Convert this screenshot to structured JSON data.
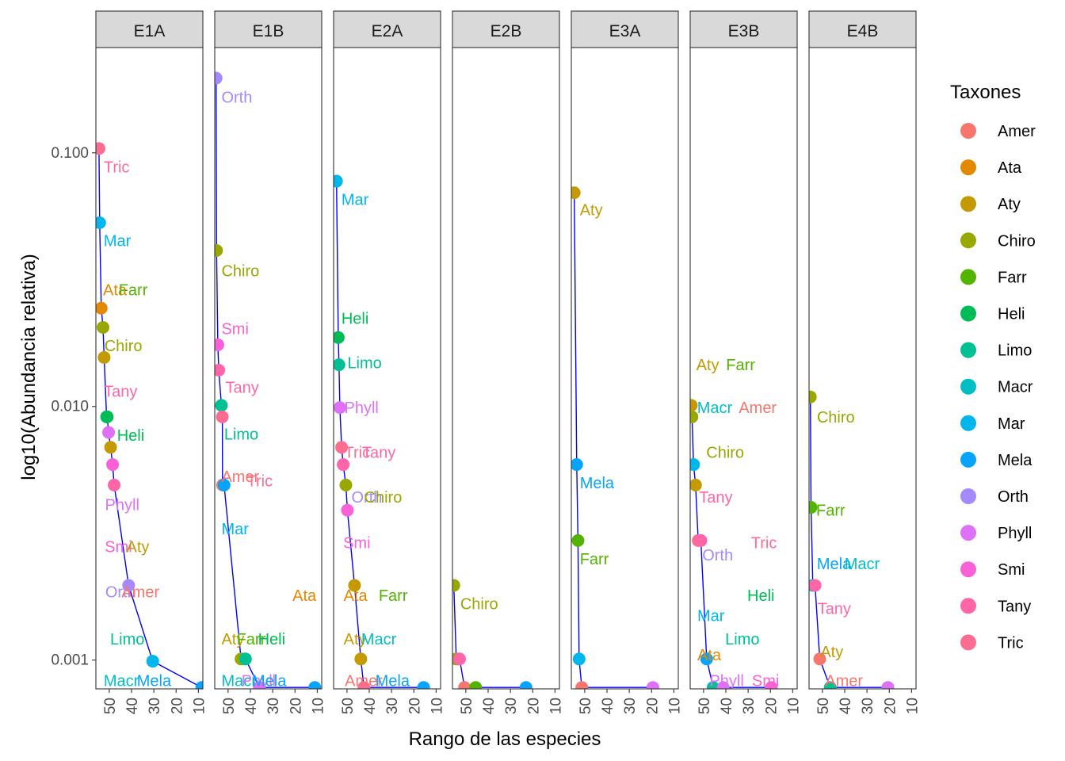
{
  "chart_data": {
    "type": "scatter",
    "xlabel": "Rango de las especies",
    "ylabel": "log10(Abundancia relativa)",
    "y_scale": "log10",
    "ylim": [
      0.00077,
      0.26
    ],
    "y_ticks": [
      0.001,
      0.01,
      0.1
    ],
    "y_tick_labels": [
      "0.001",
      "0.010",
      "0.100"
    ],
    "x_reversed": true,
    "xlim": [
      56,
      8
    ],
    "x_ticks": [
      50,
      40,
      30,
      20,
      10
    ],
    "x_tick_labels": [
      "50",
      "40",
      "30",
      "20",
      "10"
    ],
    "grid": false,
    "legend_position": "right",
    "legend": {
      "title": "Taxones",
      "entries": [
        {
          "name": "Amer",
          "color": "#F8766D"
        },
        {
          "name": "Ata",
          "color": "#E38900"
        },
        {
          "name": "Aty",
          "color": "#C49A00"
        },
        {
          "name": "Chiro",
          "color": "#99A800"
        },
        {
          "name": "Farr",
          "color": "#53B400"
        },
        {
          "name": "Heli",
          "color": "#00BC56"
        },
        {
          "name": "Limo",
          "color": "#00C094"
        },
        {
          "name": "Macr",
          "color": "#00BFC4"
        },
        {
          "name": "Mar",
          "color": "#00B6EB"
        },
        {
          "name": "Mela",
          "color": "#06A4FF"
        },
        {
          "name": "Orth",
          "color": "#A58AFF"
        },
        {
          "name": "Phyll",
          "color": "#DF70F8"
        },
        {
          "name": "Smi",
          "color": "#FB61D7"
        },
        {
          "name": "Tany",
          "color": "#FF66A8"
        },
        {
          "name": "Tric",
          "color": "#FF6C91"
        }
      ]
    },
    "facets": [
      {
        "name": "E1A",
        "points": [
          {
            "taxon": "Tric",
            "x": 54.6,
            "y": 0.104
          },
          {
            "taxon": "Mar",
            "x": 54.3,
            "y": 0.053
          },
          {
            "taxon": "Ata",
            "x": 53.6,
            "y": 0.0244
          },
          {
            "taxon": "Chiro",
            "x": 52.8,
            "y": 0.0205
          },
          {
            "taxon": "Aty",
            "x": 52.3,
            "y": 0.0156
          },
          {
            "taxon": "Limo",
            "x": 51.2,
            "y": 0.0091
          },
          {
            "taxon": "Heli",
            "x": 50.9,
            "y": 0.0091
          },
          {
            "taxon": "Phyll",
            "x": 50.3,
            "y": 0.0079
          },
          {
            "taxon": "Aty",
            "x": 49.4,
            "y": 0.0069
          },
          {
            "taxon": "Smi",
            "x": 48.5,
            "y": 0.0059
          },
          {
            "taxon": "Tany",
            "x": 47.8,
            "y": 0.0049
          },
          {
            "taxon": "Orth",
            "x": 41.3,
            "y": 0.00197
          },
          {
            "taxon": "Mar",
            "x": 30.5,
            "y": 0.00099
          },
          {
            "taxon": "Mela",
            "x": 8.5,
            "y": 0.00078
          }
        ],
        "labels": [
          {
            "text": "Tric",
            "taxon": "Tric",
            "x": 52.5,
            "y": 0.088
          },
          {
            "text": "Mar",
            "taxon": "Mar",
            "x": 52.5,
            "y": 0.045
          },
          {
            "text": "Ata",
            "taxon": "Ata",
            "x": 52.8,
            "y": 0.0289
          },
          {
            "text": "Farr",
            "taxon": "Farr",
            "x": 45.8,
            "y": 0.0289
          },
          {
            "text": "Chiro",
            "taxon": "Chiro",
            "x": 52.2,
            "y": 0.0174
          },
          {
            "text": "Tany",
            "taxon": "Tany",
            "x": 52.4,
            "y": 0.0115
          },
          {
            "text": "Heli",
            "taxon": "Heli",
            "x": 46.5,
            "y": 0.0077
          },
          {
            "text": "Phyll",
            "taxon": "Phyll",
            "x": 51.9,
            "y": 0.0041
          },
          {
            "text": "Smi",
            "taxon": "Smi",
            "x": 52.0,
            "y": 0.0028
          },
          {
            "text": "Aty",
            "taxon": "Aty",
            "x": 42.3,
            "y": 0.0028
          },
          {
            "text": "Orth",
            "taxon": "Orth",
            "x": 51.8,
            "y": 0.00186
          },
          {
            "text": "Amer",
            "taxon": "Amer",
            "x": 44.5,
            "y": 0.00186
          },
          {
            "text": "Limo",
            "taxon": "Limo",
            "x": 49.6,
            "y": 0.00121
          },
          {
            "text": "Macr",
            "taxon": "Macr",
            "x": 52.5,
            "y": 0.00083
          },
          {
            "text": "Mela",
            "taxon": "Mela",
            "x": 37.6,
            "y": 0.00083
          }
        ]
      },
      {
        "name": "E1B",
        "points": [
          {
            "taxon": "Orth",
            "x": 55.4,
            "y": 0.197
          },
          {
            "taxon": "Chiro",
            "x": 55.2,
            "y": 0.0412
          },
          {
            "taxon": "Smi",
            "x": 54.6,
            "y": 0.0175
          },
          {
            "taxon": "Tany",
            "x": 54.2,
            "y": 0.0139
          },
          {
            "taxon": "Limo",
            "x": 53.0,
            "y": 0.0101
          },
          {
            "taxon": "Tric",
            "x": 52.6,
            "y": 0.0091
          },
          {
            "taxon": "Amer",
            "x": 52.5,
            "y": 0.0049
          },
          {
            "taxon": "Mela",
            "x": 51.8,
            "y": 0.0049
          },
          {
            "taxon": "Chiro",
            "x": 44.2,
            "y": 0.00101
          },
          {
            "taxon": "Limo",
            "x": 42.2,
            "y": 0.00101
          },
          {
            "taxon": "Phyll",
            "x": 36.0,
            "y": 0.00078
          },
          {
            "taxon": "Mela",
            "x": 11.1,
            "y": 0.00078
          }
        ],
        "labels": [
          {
            "text": "Orth",
            "taxon": "Orth",
            "x": 53.0,
            "y": 0.166
          },
          {
            "text": "Chiro",
            "taxon": "Chiro",
            "x": 53.0,
            "y": 0.0343
          },
          {
            "text": "Smi",
            "taxon": "Smi",
            "x": 53.0,
            "y": 0.0203
          },
          {
            "text": "Tany",
            "taxon": "Tany",
            "x": 51.2,
            "y": 0.0119
          },
          {
            "text": "Limo",
            "taxon": "Limo",
            "x": 51.8,
            "y": 0.0078
          },
          {
            "text": "Amer",
            "taxon": "Amer",
            "x": 53.0,
            "y": 0.0053
          },
          {
            "text": "Tric",
            "taxon": "Tric",
            "x": 41.6,
            "y": 0.0051
          },
          {
            "text": "Mar",
            "taxon": "Mar",
            "x": 53.0,
            "y": 0.0033
          },
          {
            "text": "Ata",
            "taxon": "Ata",
            "x": 21.1,
            "y": 0.0018
          },
          {
            "text": "Aty",
            "taxon": "Aty",
            "x": 53.0,
            "y": 0.00121
          },
          {
            "text": "Farr",
            "taxon": "Farr",
            "x": 46.2,
            "y": 0.00121
          },
          {
            "text": "Heli",
            "taxon": "Heli",
            "x": 36.6,
            "y": 0.00121
          },
          {
            "text": "Macr",
            "taxon": "Macr",
            "x": 53.0,
            "y": 0.00083
          },
          {
            "text": "Phyll",
            "taxon": "Phyll",
            "x": 44.0,
            "y": 0.00083
          },
          {
            "text": "Mela",
            "taxon": "Mela",
            "x": 39.3,
            "y": 0.00083
          }
        ]
      },
      {
        "name": "E2A",
        "points": [
          {
            "taxon": "Mar",
            "x": 54.7,
            "y": 0.0773
          },
          {
            "taxon": "Heli",
            "x": 53.9,
            "y": 0.0187
          },
          {
            "taxon": "Limo",
            "x": 53.6,
            "y": 0.0146
          },
          {
            "taxon": "Phyll",
            "x": 53.2,
            "y": 0.0099
          },
          {
            "taxon": "Tric",
            "x": 52.4,
            "y": 0.0069
          },
          {
            "taxon": "Tany",
            "x": 51.7,
            "y": 0.0059
          },
          {
            "taxon": "Chiro",
            "x": 50.5,
            "y": 0.0049
          },
          {
            "taxon": "Smi",
            "x": 49.8,
            "y": 0.0039
          },
          {
            "taxon": "Aty",
            "x": 46.6,
            "y": 0.00197
          },
          {
            "taxon": "Aty",
            "x": 43.8,
            "y": 0.00101
          },
          {
            "taxon": "Tric",
            "x": 42.4,
            "y": 0.00078
          },
          {
            "taxon": "Mela",
            "x": 15.6,
            "y": 0.00078
          }
        ],
        "labels": [
          {
            "text": "Mar",
            "taxon": "Mar",
            "x": 52.5,
            "y": 0.0655
          },
          {
            "text": "Heli",
            "taxon": "Heli",
            "x": 52.5,
            "y": 0.0223
          },
          {
            "text": "Limo",
            "taxon": "Limo",
            "x": 49.8,
            "y": 0.0149
          },
          {
            "text": "Phyll",
            "taxon": "Phyll",
            "x": 51.2,
            "y": 0.0099
          },
          {
            "text": "Tric",
            "taxon": "Tric",
            "x": 51.2,
            "y": 0.0066
          },
          {
            "text": "Tany",
            "taxon": "Tany",
            "x": 43.2,
            "y": 0.0066
          },
          {
            "text": "Orth",
            "taxon": "Orth",
            "x": 48.0,
            "y": 0.0044
          },
          {
            "text": "Chiro",
            "taxon": "Chiro",
            "x": 42.3,
            "y": 0.0044
          },
          {
            "text": "Smi",
            "taxon": "Smi",
            "x": 51.7,
            "y": 0.0029
          },
          {
            "text": "Ata",
            "taxon": "Ata",
            "x": 51.5,
            "y": 0.0018
          },
          {
            "text": "Farr",
            "taxon": "Farr",
            "x": 35.8,
            "y": 0.0018
          },
          {
            "text": "Aty",
            "taxon": "Aty",
            "x": 51.5,
            "y": 0.00121
          },
          {
            "text": "Macr",
            "taxon": "Macr",
            "x": 43.6,
            "y": 0.00121
          },
          {
            "text": "Amer",
            "taxon": "Amer",
            "x": 51.0,
            "y": 0.00083
          },
          {
            "text": "Mela",
            "taxon": "Mela",
            "x": 37.3,
            "y": 0.00083
          }
        ]
      },
      {
        "name": "E2B",
        "points": [
          {
            "taxon": "Chiro",
            "x": 55.4,
            "y": 0.00197
          },
          {
            "taxon": "Chiro",
            "x": 54.3,
            "y": 0.00101
          },
          {
            "taxon": "Tany",
            "x": 52.8,
            "y": 0.00101
          },
          {
            "taxon": "Amer",
            "x": 50.6,
            "y": 0.00078
          },
          {
            "taxon": "Farr",
            "x": 45.6,
            "y": 0.00078
          },
          {
            "taxon": "Mela",
            "x": 23.0,
            "y": 0.00078
          }
        ],
        "labels": [
          {
            "text": "Chiro",
            "taxon": "Chiro",
            "x": 52.5,
            "y": 0.00167
          }
        ]
      },
      {
        "name": "E3A",
        "points": [
          {
            "taxon": "Aty",
            "x": 54.7,
            "y": 0.0696
          },
          {
            "taxon": "Mela",
            "x": 53.6,
            "y": 0.0059
          },
          {
            "taxon": "Farr",
            "x": 53.0,
            "y": 0.00296
          },
          {
            "taxon": "Mar",
            "x": 52.5,
            "y": 0.00101
          },
          {
            "taxon": "Amer",
            "x": 51.3,
            "y": 0.00078
          },
          {
            "taxon": "Phyll",
            "x": 19.4,
            "y": 0.00078
          }
        ],
        "labels": [
          {
            "text": "Aty",
            "taxon": "Aty",
            "x": 52.2,
            "y": 0.0596
          },
          {
            "text": "Mela",
            "taxon": "Mela",
            "x": 52.2,
            "y": 0.005
          },
          {
            "text": "Farr",
            "taxon": "Farr",
            "x": 52.2,
            "y": 0.00251
          }
        ]
      },
      {
        "name": "E3B",
        "points": [
          {
            "taxon": "Aty",
            "x": 55.5,
            "y": 0.0101
          },
          {
            "taxon": "Chiro",
            "x": 55.2,
            "y": 0.0091
          },
          {
            "taxon": "Mar",
            "x": 54.5,
            "y": 0.0059
          },
          {
            "taxon": "Aty",
            "x": 53.6,
            "y": 0.0049
          },
          {
            "taxon": "Tric",
            "x": 52.4,
            "y": 0.00296
          },
          {
            "taxon": "Tany",
            "x": 51.2,
            "y": 0.00296
          },
          {
            "taxon": "Mela",
            "x": 48.6,
            "y": 0.00101
          },
          {
            "taxon": "Limo",
            "x": 45.7,
            "y": 0.00078
          },
          {
            "taxon": "Phyll",
            "x": 41.2,
            "y": 0.00078
          },
          {
            "taxon": "Smi",
            "x": 19.6,
            "y": 0.00078
          }
        ],
        "labels": [
          {
            "text": "Aty",
            "taxon": "Aty",
            "x": 53.3,
            "y": 0.0146
          },
          {
            "text": "Farr",
            "taxon": "Farr",
            "x": 39.9,
            "y": 0.0146
          },
          {
            "text": "Macr",
            "taxon": "Macr",
            "x": 52.9,
            "y": 0.0099
          },
          {
            "text": "Amer",
            "taxon": "Amer",
            "x": 34.2,
            "y": 0.0099
          },
          {
            "text": "Chiro",
            "taxon": "Chiro",
            "x": 48.8,
            "y": 0.0066
          },
          {
            "text": "Tany",
            "taxon": "Tany",
            "x": 52.0,
            "y": 0.0044
          },
          {
            "text": "Tric",
            "taxon": "Tric",
            "x": 28.7,
            "y": 0.0029
          },
          {
            "text": "Orth",
            "taxon": "Orth",
            "x": 50.6,
            "y": 0.0026
          },
          {
            "text": "Heli",
            "taxon": "Heli",
            "x": 30.4,
            "y": 0.0018
          },
          {
            "text": "Mar",
            "taxon": "Mar",
            "x": 52.8,
            "y": 0.0015
          },
          {
            "text": "Limo",
            "taxon": "Limo",
            "x": 40.3,
            "y": 0.00121
          },
          {
            "text": "Ata",
            "taxon": "Ata",
            "x": 52.8,
            "y": 0.00105
          },
          {
            "text": "Phyll",
            "taxon": "Phyll",
            "x": 47.3,
            "y": 0.00083
          },
          {
            "text": "Smi",
            "taxon": "Smi",
            "x": 28.3,
            "y": 0.00083
          }
        ]
      },
      {
        "name": "E4B",
        "points": [
          {
            "taxon": "Chiro",
            "x": 55.4,
            "y": 0.0109
          },
          {
            "taxon": "Farr",
            "x": 55.1,
            "y": 0.004
          },
          {
            "taxon": "Mar",
            "x": 54.3,
            "y": 0.00197
          },
          {
            "taxon": "Tany",
            "x": 53.3,
            "y": 0.00197
          },
          {
            "taxon": "Amer",
            "x": 51.2,
            "y": 0.00101
          },
          {
            "taxon": "Limo",
            "x": 46.5,
            "y": 0.00078
          },
          {
            "taxon": "Phyll",
            "x": 20.6,
            "y": 0.00078
          }
        ],
        "labels": [
          {
            "text": "Chiro",
            "taxon": "Chiro",
            "x": 52.5,
            "y": 0.0091
          },
          {
            "text": "Farr",
            "taxon": "Farr",
            "x": 52.8,
            "y": 0.0039
          },
          {
            "text": "Mela",
            "taxon": "Mela",
            "x": 52.5,
            "y": 0.0024
          },
          {
            "text": "Macr",
            "taxon": "Macr",
            "x": 40.1,
            "y": 0.0024
          },
          {
            "text": "Tany",
            "taxon": "Tany",
            "x": 52.2,
            "y": 0.0016
          },
          {
            "text": "Aty",
            "taxon": "Aty",
            "x": 50.9,
            "y": 0.00108
          },
          {
            "text": "Amer",
            "taxon": "Amer",
            "x": 48.8,
            "y": 0.00083
          }
        ]
      }
    ]
  }
}
